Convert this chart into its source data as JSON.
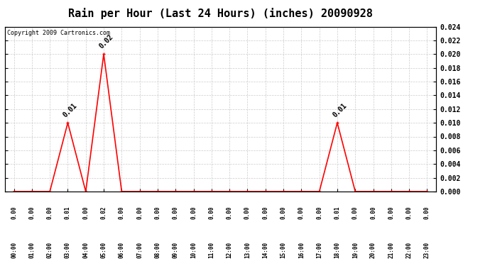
{
  "title": "Rain per Hour (Last 24 Hours) (inches) 20090928",
  "copyright_text": "Copyright 2009 Cartronics.com",
  "hours": [
    0,
    1,
    2,
    3,
    4,
    5,
    6,
    7,
    8,
    9,
    10,
    11,
    12,
    13,
    14,
    15,
    16,
    17,
    18,
    19,
    20,
    21,
    22,
    23
  ],
  "values": [
    0,
    0,
    0,
    0.01,
    0,
    0.02,
    0,
    0,
    0,
    0,
    0,
    0,
    0,
    0,
    0,
    0,
    0,
    0,
    0.01,
    0,
    0,
    0,
    0,
    0
  ],
  "ylim": [
    0,
    0.024
  ],
  "yticks": [
    0.0,
    0.002,
    0.004,
    0.006,
    0.008,
    0.01,
    0.012,
    0.014,
    0.016,
    0.018,
    0.02,
    0.022,
    0.024
  ],
  "line_color": "red",
  "grid_color": "#cccccc",
  "background_color": "white",
  "annotation_color": "black",
  "title_fontsize": 11,
  "tick_fontsize": 7,
  "annotation_fontsize": 7,
  "copyright_fontsize": 6
}
